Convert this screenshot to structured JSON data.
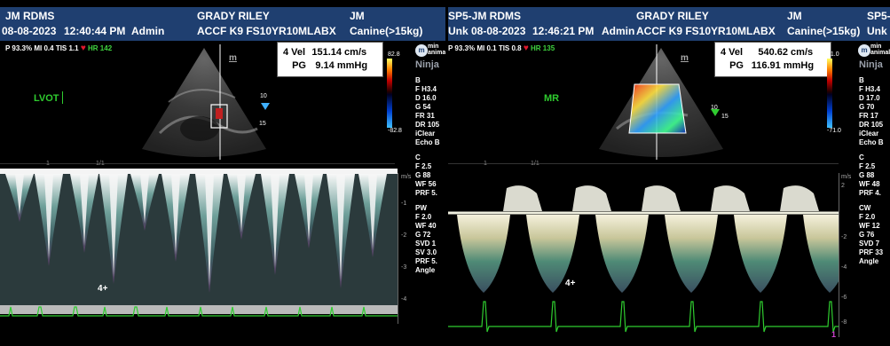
{
  "colors": {
    "header_bg": "#1f3f70",
    "ecg_green": "#2fcc2f",
    "label_green": "#2fcc2f",
    "heart_red": "#e0192d",
    "doppler_white": "#f4f4f4"
  },
  "left_panel": {
    "header": {
      "device": "JM RDMS",
      "date": "08-08-2023",
      "time": "12:40:44 PM",
      "user": "Admin",
      "patient": "GRADY RILEY",
      "probe": "ACCF K9 FS10YR10MLABX",
      "initials": "JM",
      "category": "Canine(>15kg)"
    },
    "status": {
      "p": "P 93.3%",
      "mi": "MI 0.4",
      "tis": "TIS 1.1",
      "hr": "HR 142"
    },
    "mode_label": "LVOT",
    "measurement": {
      "vel_label": "4 Vel",
      "vel_value": "151.14 cm/s",
      "pg_label": "PG",
      "pg_value": "9.14 mmHg"
    },
    "colorbar": {
      "top": "82.8",
      "bottom": "-82.8"
    },
    "marker": "4",
    "depth_marks": [
      "10",
      "15"
    ],
    "scale_marks": [
      "1",
      "1/1"
    ],
    "scale_unit": "m/s",
    "axis_ticks": [
      "-1",
      "-2",
      "-3",
      "-4"
    ]
  },
  "right_panel": {
    "header": {
      "device": "SP5-JM RDMS",
      "unknown": "Unk",
      "date": "08-08-2023",
      "time": "12:46:21 PM",
      "user": "Admin",
      "patient": "GRADY RILEY",
      "probe": "ACCF K9 FS10YR10MLABX",
      "initials": "JM",
      "category": "Canine(>15kg)",
      "extra": "SP5-",
      "extra2": "Unk"
    },
    "status": {
      "p": "P 93.3%",
      "mi": "MI 0.1",
      "tis": "TIS 0.8",
      "hr": "HR 135"
    },
    "mode_label": "MR",
    "measurement": {
      "vel_label": "4 Vel",
      "vel_value": "540.62 cm/s",
      "pg_label": "PG",
      "pg_value": "116.91 mmHg"
    },
    "colorbar": {
      "top": "71.0",
      "bottom": "-71.0"
    },
    "marker": "4",
    "depth_marks": [
      "10",
      "15"
    ],
    "scale_marks": [
      "1",
      "1/1"
    ],
    "scale_unit": "m/s",
    "axis_ticks": [
      "2",
      "-2",
      "-4",
      "-6",
      "-8"
    ],
    "extra_marker": "1"
  },
  "side_params_left": {
    "logo_text": "min",
    "logo_sub": "animal",
    "ninja": "Ninja",
    "b_block": [
      "B",
      "F H3.4",
      "D 16.0",
      "G 54",
      "FR 31",
      "DR 105",
      "iClear",
      "Echo B"
    ],
    "c_block": [
      "C",
      "F 2.5",
      "G 88",
      "WF 56",
      "PRF 5."
    ],
    "pw_block": [
      "PW",
      "F 2.0",
      "WF 40",
      "G 72",
      "SVD 1",
      "SV 3.0",
      "PRF 5.",
      "Angle"
    ]
  },
  "side_params_right": {
    "logo_text": "min",
    "logo_sub": "animal",
    "ninja": "Ninja",
    "b_block": [
      "B",
      "F H3.4",
      "D 17.0",
      "G 70",
      "FR 17",
      "DR 105",
      "iClear",
      "Echo B"
    ],
    "c_block": [
      "C",
      "F 2.5",
      "G 88",
      "WF 48",
      "PRF 4."
    ],
    "cw_block": [
      "CW",
      "F 2.0",
      "WF 12",
      "G 76",
      "SVD 7",
      "PRF 33",
      "Angle"
    ]
  }
}
